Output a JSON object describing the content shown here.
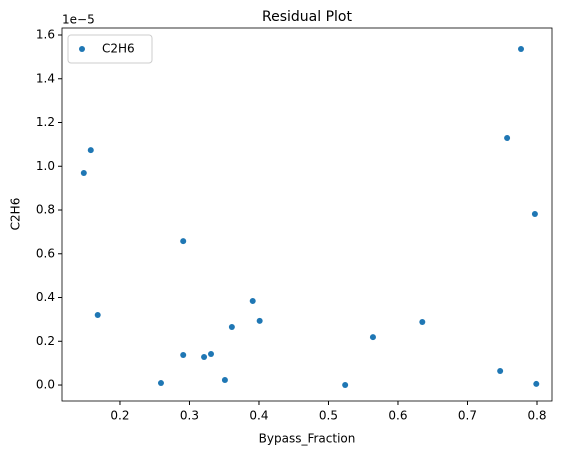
{
  "chart_data": {
    "type": "scatter",
    "title": "Residual Plot",
    "x_label": "Bypass_Fraction",
    "y_label": "C2H6",
    "y_offset_label": "1e−5",
    "x": [
      0.148,
      0.158,
      0.168,
      0.259,
      0.291,
      0.291,
      0.321,
      0.331,
      0.351,
      0.361,
      0.391,
      0.401,
      0.524,
      0.564,
      0.635,
      0.747,
      0.757,
      0.777,
      0.797,
      0.799
    ],
    "series": [
      {
        "name": "C2H6",
        "color": "#1f77b4",
        "values": [
          0.969,
          1.074,
          0.32,
          0.009,
          0.658,
          0.137,
          0.128,
          0.142,
          0.023,
          0.265,
          0.384,
          0.293,
          0.0,
          0.219,
          0.288,
          0.064,
          1.129,
          1.536,
          0.782,
          0.005
        ]
      }
    ],
    "xlim": [
      0.1166,
      0.8216
    ],
    "ylim": [
      -0.073,
      1.632
    ],
    "xticks": [
      0.2,
      0.3,
      0.4,
      0.5,
      0.6,
      0.7,
      0.8
    ],
    "yticks": [
      {
        "value": 0,
        "label": "0.0"
      },
      0.2,
      0.4,
      0.6,
      0.8,
      {
        "value": 1,
        "label": "1.0"
      },
      1.2,
      1.4,
      1.6
    ],
    "legend": "upper left",
    "grid": false
  }
}
